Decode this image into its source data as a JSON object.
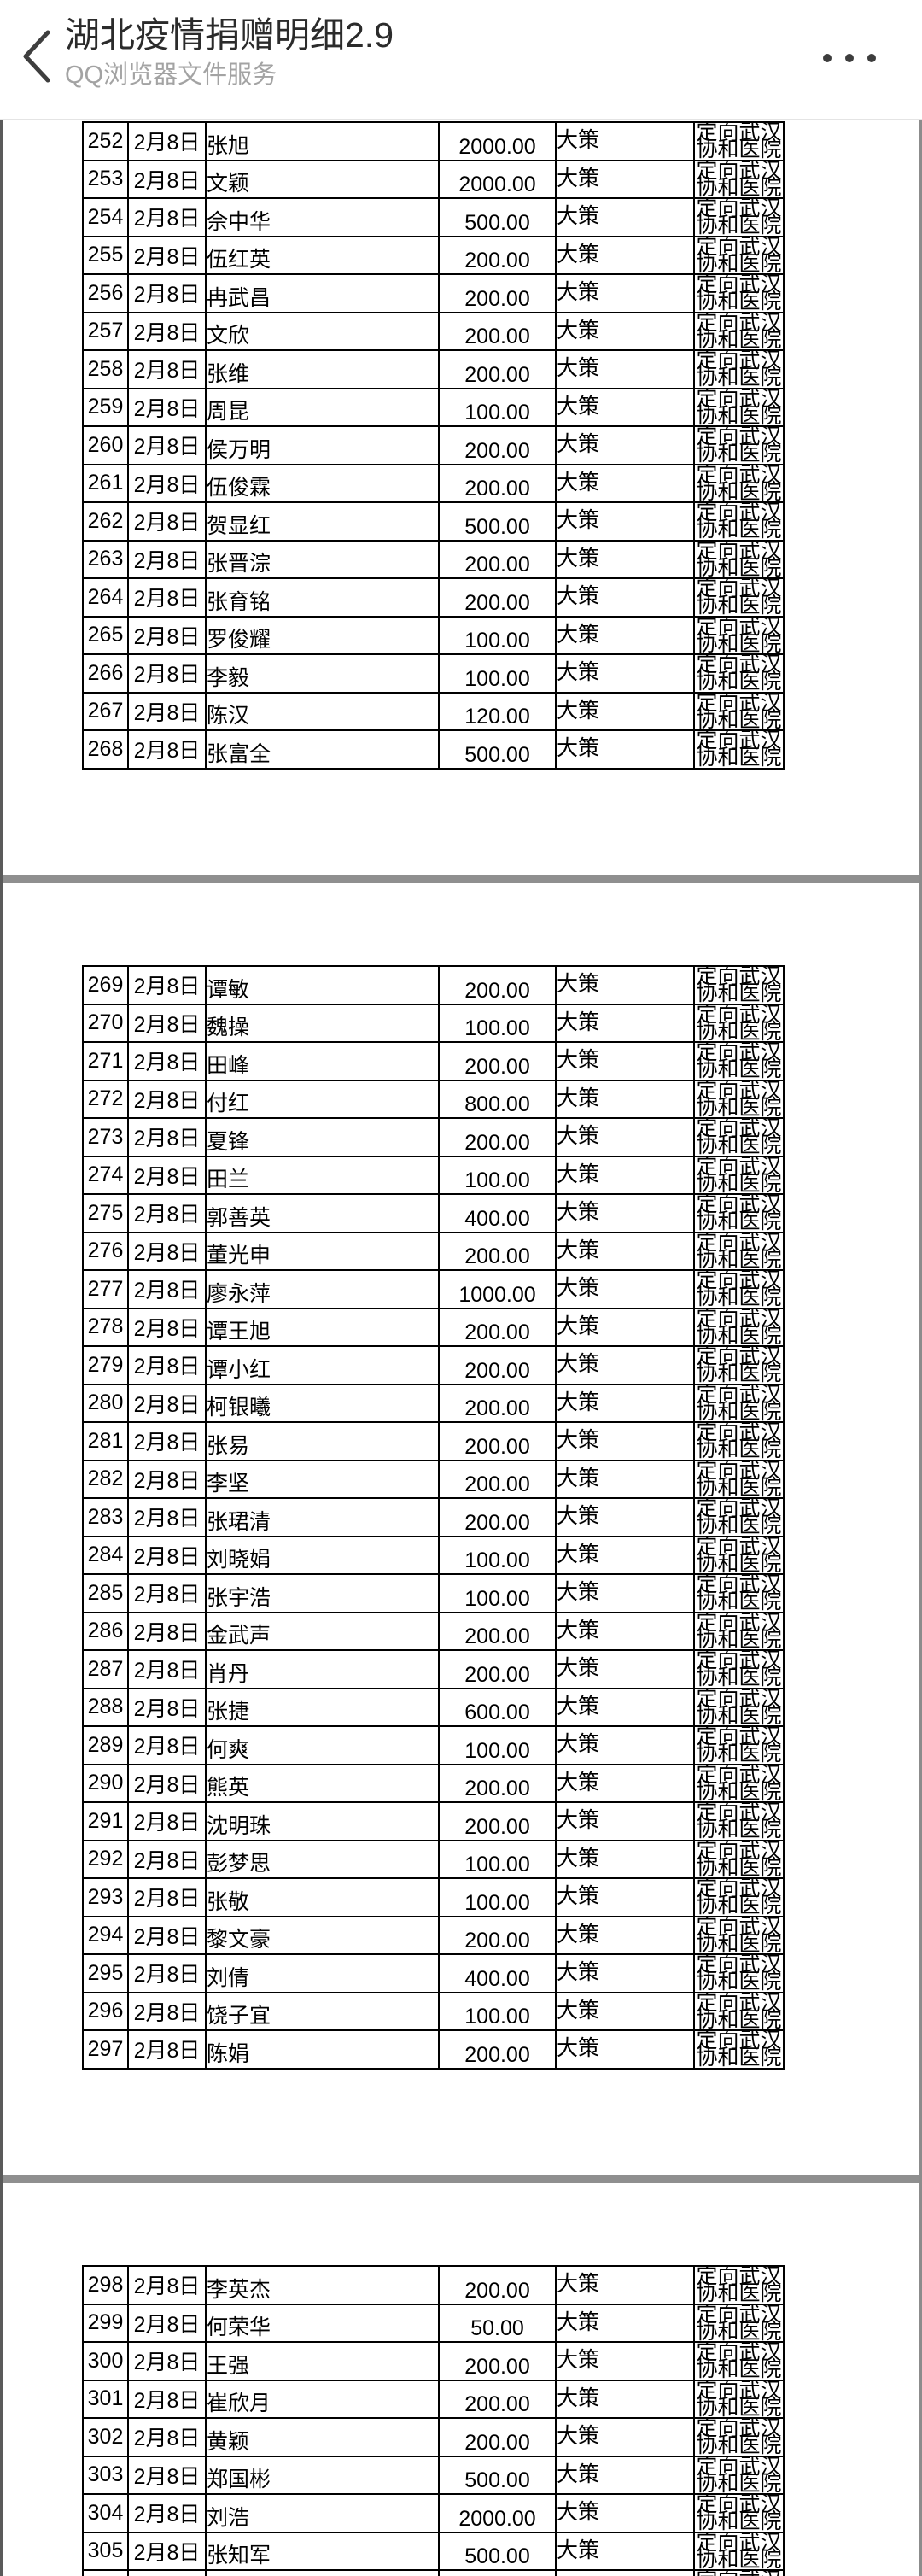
{
  "header": {
    "title": "湖北疫情捐赠明细2.9",
    "subtitle": "QQ浏览器文件服务",
    "back_icon": "chevron-left",
    "menu_icon": "three-dots"
  },
  "document": {
    "amount_color": "#dd281c",
    "shared": {
      "date": "2月8日",
      "category": "大策",
      "destination": "定向武汉协和医院"
    },
    "pages": [
      {
        "rows": [
          {
            "no": "252",
            "name": "张旭",
            "amount": "2000.00"
          },
          {
            "no": "253",
            "name": "文颖",
            "amount": "2000.00"
          },
          {
            "no": "254",
            "name": "佘中华",
            "amount": "500.00"
          },
          {
            "no": "255",
            "name": "伍红英",
            "amount": "200.00"
          },
          {
            "no": "256",
            "name": "冉武昌",
            "amount": "200.00"
          },
          {
            "no": "257",
            "name": "文欣",
            "amount": "200.00"
          },
          {
            "no": "258",
            "name": "张维",
            "amount": "200.00"
          },
          {
            "no": "259",
            "name": "周昆",
            "amount": "100.00"
          },
          {
            "no": "260",
            "name": "侯万明",
            "amount": "200.00"
          },
          {
            "no": "261",
            "name": "伍俊霖",
            "amount": "200.00"
          },
          {
            "no": "262",
            "name": "贺显红",
            "amount": "500.00"
          },
          {
            "no": "263",
            "name": "张晋淙",
            "amount": "200.00"
          },
          {
            "no": "264",
            "name": "张育铭",
            "amount": "200.00"
          },
          {
            "no": "265",
            "name": "罗俊耀",
            "amount": "100.00"
          },
          {
            "no": "266",
            "name": "李毅",
            "amount": "100.00"
          },
          {
            "no": "267",
            "name": "陈汉",
            "amount": "120.00"
          },
          {
            "no": "268",
            "name": "张富全",
            "amount": "500.00"
          }
        ]
      },
      {
        "rows": [
          {
            "no": "269",
            "name": "谭敏",
            "amount": "200.00"
          },
          {
            "no": "270",
            "name": "魏操",
            "amount": "100.00"
          },
          {
            "no": "271",
            "name": "田峰",
            "amount": "200.00"
          },
          {
            "no": "272",
            "name": "付红",
            "amount": "800.00"
          },
          {
            "no": "273",
            "name": "夏锋",
            "amount": "200.00"
          },
          {
            "no": "274",
            "name": "田兰",
            "amount": "100.00"
          },
          {
            "no": "275",
            "name": "郭善英",
            "amount": "400.00"
          },
          {
            "no": "276",
            "name": "董光申",
            "amount": "200.00"
          },
          {
            "no": "277",
            "name": "廖永萍",
            "amount": "1000.00"
          },
          {
            "no": "278",
            "name": "谭王旭",
            "amount": "200.00"
          },
          {
            "no": "279",
            "name": "谭小红",
            "amount": "200.00"
          },
          {
            "no": "280",
            "name": "柯银曦",
            "amount": "200.00"
          },
          {
            "no": "281",
            "name": "张易",
            "amount": "200.00"
          },
          {
            "no": "282",
            "name": "李坚",
            "amount": "200.00"
          },
          {
            "no": "283",
            "name": "张珺清",
            "amount": "200.00"
          },
          {
            "no": "284",
            "name": "刘晓娟",
            "amount": "100.00"
          },
          {
            "no": "285",
            "name": "张宇浩",
            "amount": "100.00"
          },
          {
            "no": "286",
            "name": "金武声",
            "amount": "200.00"
          },
          {
            "no": "287",
            "name": "肖丹",
            "amount": "200.00"
          },
          {
            "no": "288",
            "name": "张捷",
            "amount": "600.00"
          },
          {
            "no": "289",
            "name": "何爽",
            "amount": "100.00"
          },
          {
            "no": "290",
            "name": "熊英",
            "amount": "200.00"
          },
          {
            "no": "291",
            "name": "沈明珠",
            "amount": "200.00"
          },
          {
            "no": "292",
            "name": "彭梦思",
            "amount": "100.00"
          },
          {
            "no": "293",
            "name": "张敬",
            "amount": "100.00"
          },
          {
            "no": "294",
            "name": "黎文豪",
            "amount": "200.00"
          },
          {
            "no": "295",
            "name": "刘倩",
            "amount": "400.00"
          },
          {
            "no": "296",
            "name": "饶子宜",
            "amount": "100.00"
          },
          {
            "no": "297",
            "name": "陈娟",
            "amount": "200.00"
          }
        ]
      },
      {
        "rows": [
          {
            "no": "298",
            "name": "李英杰",
            "amount": "200.00"
          },
          {
            "no": "299",
            "name": "何荣华",
            "amount": "50.00"
          },
          {
            "no": "300",
            "name": "王强",
            "amount": "200.00"
          },
          {
            "no": "301",
            "name": "崔欣月",
            "amount": "200.00"
          },
          {
            "no": "302",
            "name": "黄颖",
            "amount": "200.00"
          },
          {
            "no": "303",
            "name": "郑国彬",
            "amount": "500.00"
          },
          {
            "no": "304",
            "name": "刘浩",
            "amount": "2000.00"
          },
          {
            "no": "305",
            "name": "张知军",
            "amount": "500.00"
          },
          {
            "no": "",
            "name": "",
            "amount": ""
          }
        ]
      }
    ]
  }
}
